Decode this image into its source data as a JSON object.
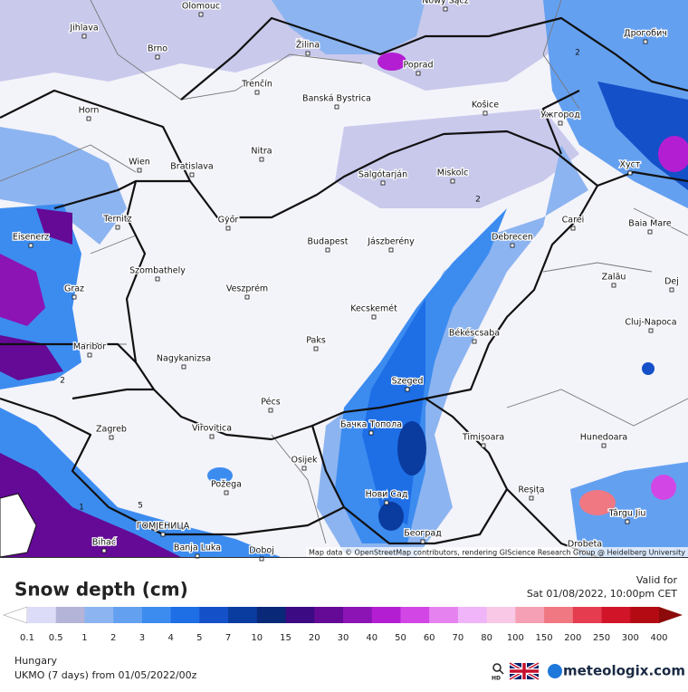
{
  "map": {
    "cities": [
      "Olomouc",
      "Nowy Sącz",
      "Jihlava",
      "Brno",
      "Žilina",
      "Poprad",
      "Дрогобич",
      "Horn",
      "Trenčín",
      "Banská Bystrica",
      "Košice",
      "Ужгород",
      "Wien",
      "Bratislava",
      "Nitra",
      "Salgótarján",
      "Miskolc",
      "Хуст",
      "Ternitz",
      "Eisenerz",
      "Győr",
      "Budapest",
      "Jászberény",
      "Debrecen",
      "Carei",
      "Baia Mare",
      "Graz",
      "Szombathely",
      "Veszprém",
      "Zalău",
      "Dej",
      "Kecskemét",
      "Cluj-Napoca",
      "Maribor",
      "Paks",
      "Békéscsaba",
      "Nagykanizsa",
      "Szeged",
      "Pécs",
      "Zagreb",
      "Virovitica",
      "Бачка Топола",
      "Timișoara",
      "Hunedoara",
      "Osijek",
      "Požega",
      "Нови Сад",
      "Reșița",
      "Târgu Jiu",
      "ГОМЈЕНИЦА",
      "Bihać",
      "Banja Luka",
      "Doboj",
      "Београд",
      "Drobeta"
    ],
    "contour_labels": [
      "2",
      "2",
      "2",
      "5",
      "1"
    ],
    "attribution": "Map data © OpenStreetMap contributors, rendering GIScience Research Group @ Heidelberg University"
  },
  "legend": {
    "title": "Snow depth (cm)",
    "valid_label": "Valid for",
    "valid_time": "Sat 01/08/2022, 10:00pm CET",
    "colors": [
      "#dcdcf8",
      "#b4b4d8",
      "#8cb4f0",
      "#64a0f0",
      "#3c8cf0",
      "#1e6ee6",
      "#1450c8",
      "#0a3ca0",
      "#0a2878",
      "#3c0a82",
      "#640a96",
      "#8c14b4",
      "#b41ed2",
      "#d246e6",
      "#e682f0",
      "#f0b4f8",
      "#f8c8e6",
      "#f5a0b4",
      "#f07882",
      "#e63c50",
      "#d21428",
      "#b40a14",
      "#8c0a0a"
    ],
    "labels": [
      0.1,
      0.5,
      1,
      2,
      3,
      4,
      5,
      7,
      10,
      15,
      20,
      30,
      40,
      50,
      60,
      70,
      80,
      100,
      150,
      200,
      250,
      300,
      400
    ]
  },
  "footer": {
    "region": "Hungary",
    "model": "UKMO (7 days) from 01/05/2022/00z",
    "hd": "HD",
    "brand": "meteologix.com"
  }
}
